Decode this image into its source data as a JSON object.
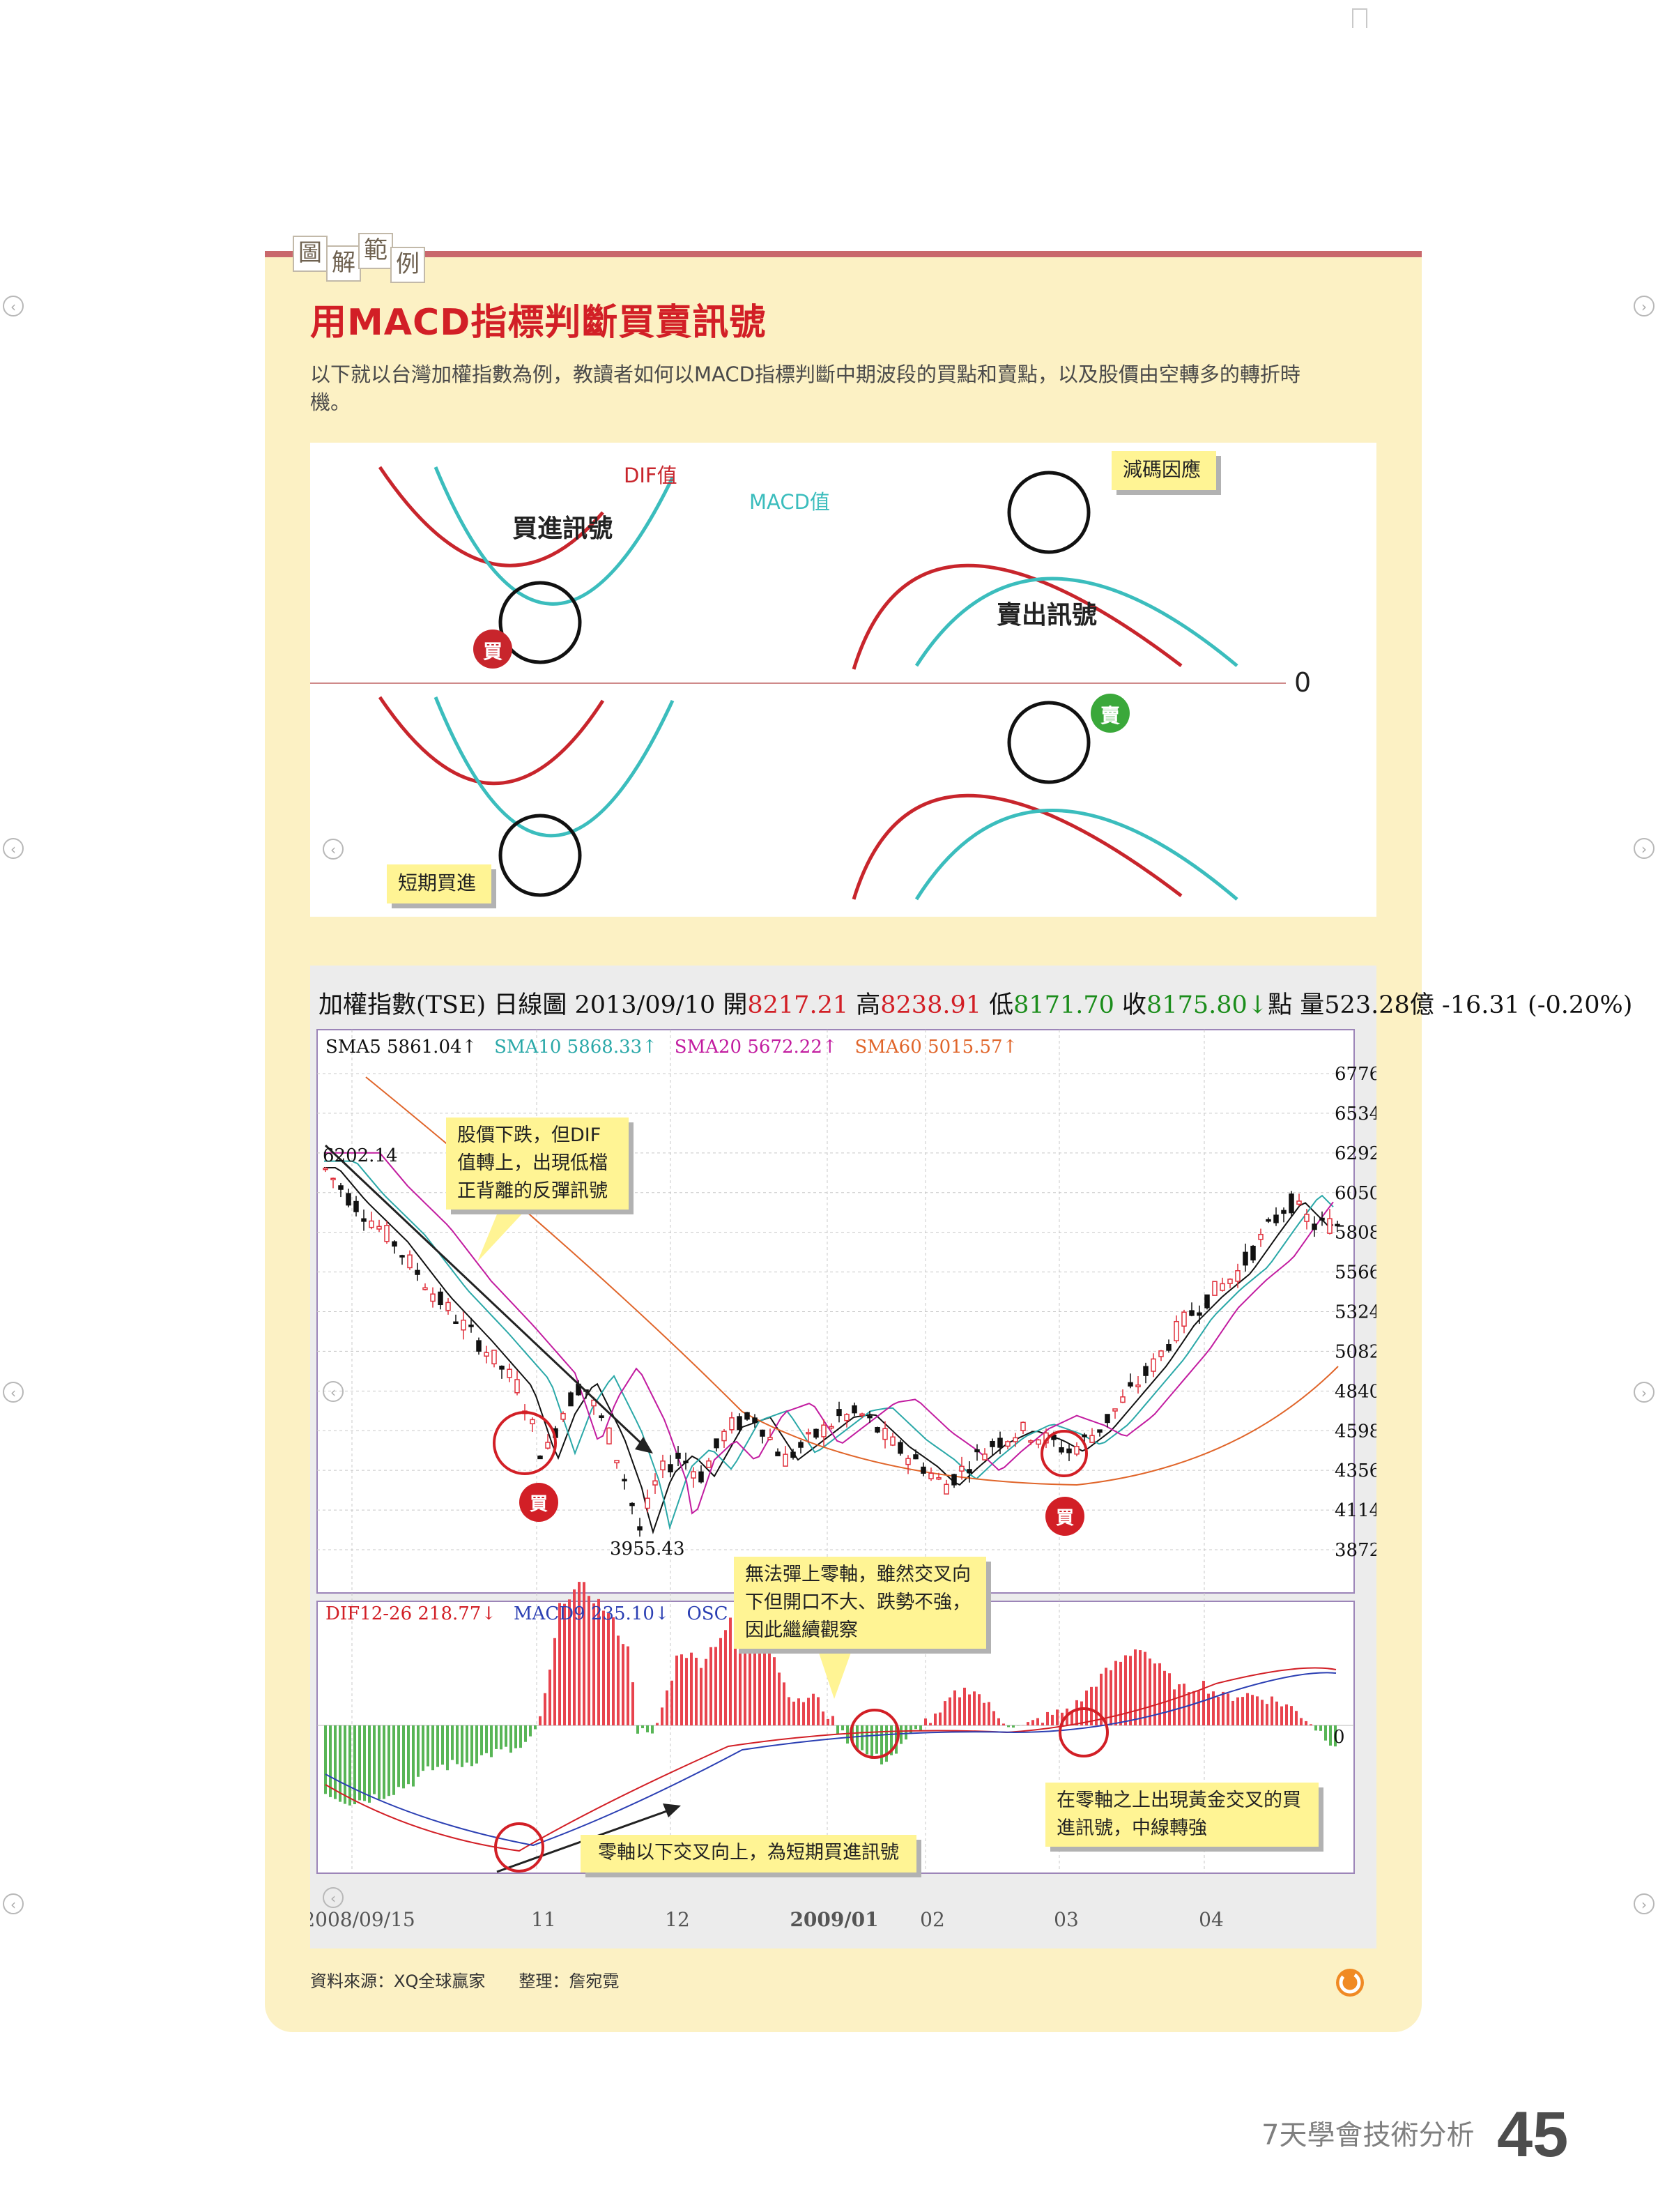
{
  "badge": {
    "chars": [
      "圖",
      "解",
      "範",
      "例"
    ]
  },
  "title": "用MACD指標判斷買賣訊號",
  "intro": "以下就以台灣加權指數為例，教讀者如何以MACD指標判斷中期波段的買點和賣點，以及股價由空轉多的轉折時機。",
  "diagram": {
    "dif_label": "DIF值",
    "macd_label": "MACD值",
    "buy_signal": "買進訊號",
    "sell_signal": "賣出訊號",
    "reduce_note": "減碼因應",
    "short_buy_note": "短期買進",
    "buy_marker": "買",
    "sell_marker": "賣",
    "zero_label": "0",
    "colors": {
      "dif": "#c8252c",
      "macd": "#3bbdbd",
      "circle": "#111111",
      "axis": "#cf8a8a"
    }
  },
  "chart": {
    "header": {
      "name": "加權指數(TSE)",
      "period": "日線圖",
      "date": "2013/09/10",
      "open_label": "開",
      "open": "8217.21",
      "high_label": "高",
      "high": "8238.91",
      "low_label": "低",
      "low": "8171.70",
      "close_label": "收",
      "close": "8175.80",
      "arrow": "↓",
      "unit_label": "點",
      "volume_label": "量",
      "volume": "523.28",
      "volume_unit": "億",
      "change": "-16.31 (-0.20%)"
    },
    "sma": {
      "sma5": "SMA5 5861.04↑",
      "sma10": "SMA10 5868.33↑",
      "sma20": "SMA20 5672.22↑",
      "sma60": "SMA60 5015.57↑"
    },
    "macd_legend": {
      "dif": "DIF12-26 218.77↓",
      "macd": "MACD9 235.10↓",
      "osc": "OSC -16.33↓"
    },
    "y_ticks": [
      "6776",
      "6534",
      "6292",
      "6050",
      "5808",
      "5566",
      "5324",
      "5082",
      "4840",
      "4598",
      "4356",
      "4114",
      "3872"
    ],
    "x_ticks": [
      "2008/09/15",
      "11",
      "12",
      "2009/01",
      "02",
      "03",
      "04"
    ],
    "high_label": "6202.14",
    "low_label": "3955.43",
    "osc_zero": "0",
    "notes": {
      "note1": "股價下跌，但DIF值轉上，出現低檔正背離的反彈訊號",
      "note2": "無法彈上零軸，雖然交叉向下但開口不大、跌勢不強，因此繼續觀察",
      "note3": "零軸以下交叉向上，為短期買進訊號",
      "note4": "在零軸之上出現黃金交叉的買進訊號，中線轉強"
    },
    "buy_marker": "買",
    "colors": {
      "up": "#e0303c",
      "down": "#111111",
      "hist_up": "#e8444e",
      "hist_down": "#58b556",
      "sma5": "#111111",
      "sma10": "#2aa8a8",
      "sma20": "#c21ca0",
      "sma60": "#e0652a"
    }
  },
  "source": {
    "text": "資料來源：XQ全球贏家　　整理：詹宛霓"
  },
  "footer": {
    "title": "7天學會技術分析",
    "page": "45"
  }
}
